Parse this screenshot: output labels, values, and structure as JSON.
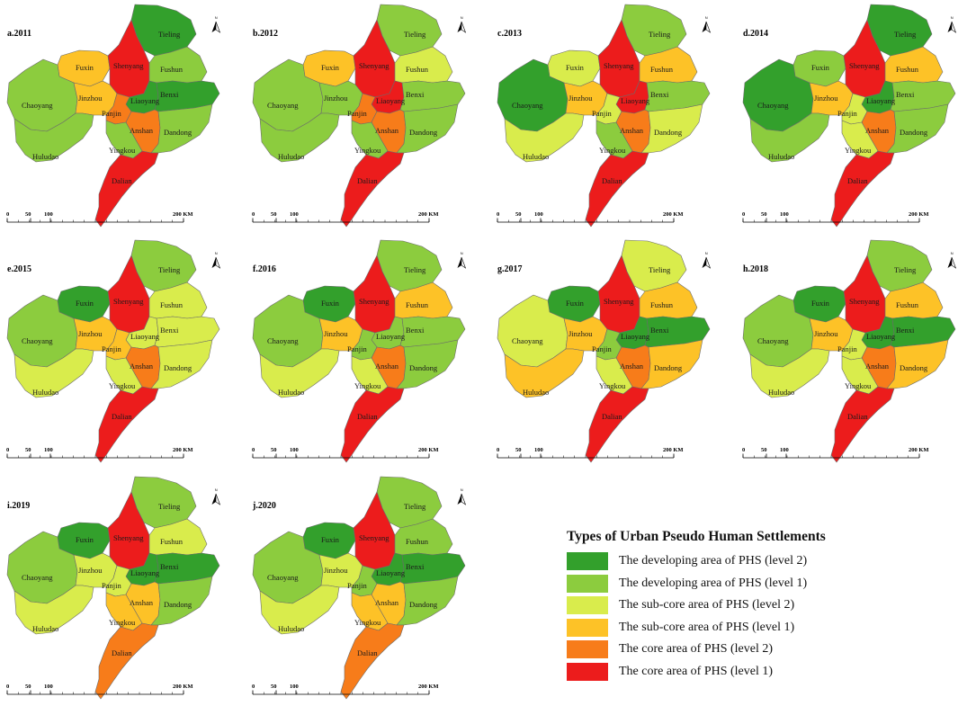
{
  "map": {
    "colors": {
      "dev2": "#33a02c",
      "dev1": "#8ccc3e",
      "sub2": "#d9ec4c",
      "sub1": "#fdc227",
      "core2": "#f77c1a",
      "core1": "#ec1c1c"
    },
    "scale_ticks": [
      "0",
      "50",
      "100",
      "200 KM"
    ],
    "north_label": "N",
    "panels": [
      {
        "title": "a.2011",
        "classes": {
          "Tieling": "dev2",
          "Fuxin": "sub1",
          "Shenyang": "core1",
          "Fushun": "dev1",
          "Chaoyang": "dev1",
          "Jinzhou": "sub1",
          "Liaoyang": "dev2",
          "Benxi": "dev2",
          "Panjin": "core2",
          "Anshan": "core2",
          "Dandong": "dev1",
          "Huludao": "dev1",
          "Yingkou": "dev1",
          "Dalian": "core1"
        }
      },
      {
        "title": "b.2012",
        "classes": {
          "Tieling": "dev1",
          "Fuxin": "sub1",
          "Shenyang": "core1",
          "Fushun": "sub2",
          "Chaoyang": "dev1",
          "Jinzhou": "dev1",
          "Liaoyang": "core1",
          "Benxi": "dev1",
          "Panjin": "core2",
          "Anshan": "core2",
          "Dandong": "dev1",
          "Huludao": "dev1",
          "Yingkou": "dev1",
          "Dalian": "core1"
        }
      },
      {
        "title": "c.2013",
        "classes": {
          "Tieling": "dev1",
          "Fuxin": "sub2",
          "Shenyang": "core1",
          "Fushun": "sub1",
          "Chaoyang": "dev2",
          "Jinzhou": "sub1",
          "Liaoyang": "core1",
          "Benxi": "dev1",
          "Panjin": "sub2",
          "Anshan": "core2",
          "Dandong": "sub2",
          "Huludao": "sub2",
          "Yingkou": "dev1",
          "Dalian": "core1"
        }
      },
      {
        "title": "d.2014",
        "classes": {
          "Tieling": "dev2",
          "Fuxin": "dev1",
          "Shenyang": "core1",
          "Fushun": "sub1",
          "Chaoyang": "dev2",
          "Jinzhou": "sub1",
          "Liaoyang": "dev2",
          "Benxi": "dev1",
          "Panjin": "sub2",
          "Anshan": "core2",
          "Dandong": "dev1",
          "Huludao": "dev1",
          "Yingkou": "sub2",
          "Dalian": "core1"
        }
      },
      {
        "title": "e.2015",
        "classes": {
          "Tieling": "dev1",
          "Fuxin": "dev2",
          "Shenyang": "core1",
          "Fushun": "sub2",
          "Chaoyang": "dev1",
          "Jinzhou": "sub1",
          "Liaoyang": "sub2",
          "Benxi": "sub2",
          "Panjin": "sub1",
          "Anshan": "core2",
          "Dandong": "sub2",
          "Huludao": "sub2",
          "Yingkou": "sub2",
          "Dalian": "core1"
        }
      },
      {
        "title": "f.2016",
        "classes": {
          "Tieling": "dev1",
          "Fuxin": "dev2",
          "Shenyang": "core1",
          "Fushun": "sub1",
          "Chaoyang": "dev1",
          "Jinzhou": "sub1",
          "Liaoyang": "dev1",
          "Benxi": "dev1",
          "Panjin": "dev1",
          "Anshan": "core2",
          "Dandong": "dev1",
          "Huludao": "sub2",
          "Yingkou": "sub2",
          "Dalian": "core1"
        }
      },
      {
        "title": "g.2017",
        "classes": {
          "Tieling": "sub2",
          "Fuxin": "dev2",
          "Shenyang": "core1",
          "Fushun": "sub1",
          "Chaoyang": "sub2",
          "Jinzhou": "sub1",
          "Liaoyang": "dev2",
          "Benxi": "dev2",
          "Panjin": "dev1",
          "Anshan": "core2",
          "Dandong": "sub1",
          "Huludao": "sub1",
          "Yingkou": "sub2",
          "Dalian": "core1"
        }
      },
      {
        "title": "h.2018",
        "classes": {
          "Tieling": "dev1",
          "Fuxin": "dev2",
          "Shenyang": "core1",
          "Fushun": "sub1",
          "Chaoyang": "dev1",
          "Jinzhou": "sub1",
          "Liaoyang": "dev2",
          "Benxi": "dev2",
          "Panjin": "sub2",
          "Anshan": "core2",
          "Dandong": "sub1",
          "Huludao": "sub2",
          "Yingkou": "sub2",
          "Dalian": "core1"
        }
      },
      {
        "title": "i.2019",
        "classes": {
          "Tieling": "dev1",
          "Fuxin": "dev2",
          "Shenyang": "core1",
          "Fushun": "sub2",
          "Chaoyang": "dev1",
          "Jinzhou": "sub2",
          "Liaoyang": "dev2",
          "Benxi": "dev2",
          "Panjin": "sub2",
          "Anshan": "sub1",
          "Dandong": "dev1",
          "Huludao": "sub2",
          "Yingkou": "sub1",
          "Dalian": "core2"
        }
      },
      {
        "title": "j.2020",
        "classes": {
          "Tieling": "dev1",
          "Fuxin": "dev2",
          "Shenyang": "core1",
          "Fushun": "dev1",
          "Chaoyang": "dev1",
          "Jinzhou": "sub2",
          "Liaoyang": "dev2",
          "Benxi": "dev2",
          "Panjin": "dev1",
          "Anshan": "sub1",
          "Dandong": "dev1",
          "Huludao": "sub2",
          "Yingkou": "sub1",
          "Dalian": "core2"
        }
      }
    ]
  },
  "legend": {
    "title": "Types of Urban Pseudo Human Settlements",
    "items": [
      {
        "key": "dev2",
        "label": "The developing area of PHS (level 2)"
      },
      {
        "key": "dev1",
        "label": "The developing area of PHS (level 1)"
      },
      {
        "key": "sub2",
        "label": "The sub-core area of PHS (level 2)"
      },
      {
        "key": "sub1",
        "label": "The sub-core area of PHS (level 1)"
      },
      {
        "key": "core2",
        "label": "The core area of PHS (level 2)"
      },
      {
        "key": "core1",
        "label": "The core area of PHS (level 1)"
      }
    ]
  }
}
